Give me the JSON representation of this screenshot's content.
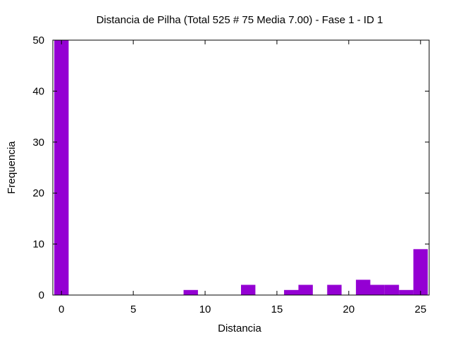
{
  "chart_data": {
    "type": "bar",
    "title": "Distancia de Pilha (Total 525 # 75 Media 7.00) - Fase  1 - ID 1",
    "xlabel": "Distancia",
    "ylabel": "Frequencia",
    "xlim": [
      -0.6,
      25.6
    ],
    "ylim": [
      0,
      50
    ],
    "x_ticks": [
      "0",
      "5",
      "10",
      "15",
      "20",
      "25"
    ],
    "y_ticks": [
      "0",
      "10",
      "20",
      "30",
      "40",
      "50"
    ],
    "bar_width": 1,
    "bar_color": "#9400D3",
    "grid": false,
    "x": [
      0,
      9,
      13,
      16,
      17,
      19,
      21,
      22,
      23,
      24,
      25
    ],
    "values": [
      50,
      1,
      2,
      1,
      2,
      2,
      3,
      2,
      2,
      1,
      9
    ]
  }
}
